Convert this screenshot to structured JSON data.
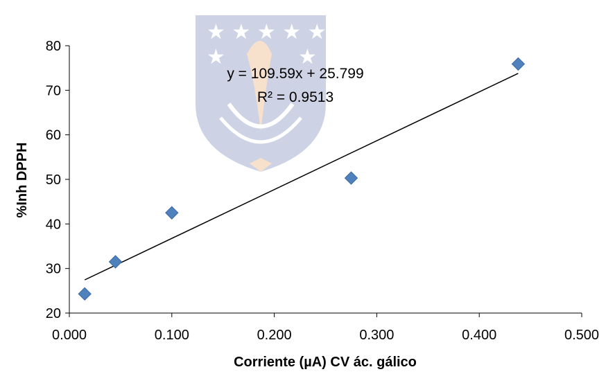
{
  "chart_data": {
    "type": "scatter",
    "title": "",
    "xlabel": "Corriente  (µA) CV ác. gálico",
    "ylabel": "%Inh DPPH",
    "xlim": [
      0.0,
      0.5
    ],
    "ylim": [
      20,
      80
    ],
    "x_ticks": [
      "0.000",
      "0.100",
      "0.200",
      "0.300",
      "0.400",
      "0.500"
    ],
    "y_ticks": [
      "20",
      "30",
      "40",
      "50",
      "60",
      "70",
      "80"
    ],
    "grid": false,
    "legend": "none",
    "marker_color": "#4f81bd",
    "trendline": {
      "slope": 109.59,
      "intercept": 25.799,
      "equation": "y = 109.59x + 25.799",
      "r2_label": "R² = 0.9513",
      "color": "#000000"
    },
    "series": [
      {
        "x": [
          0.015,
          0.045,
          0.1,
          0.275,
          0.438
        ],
        "y": [
          24.3,
          31.5,
          42.5,
          50.3,
          75.9
        ]
      }
    ]
  }
}
